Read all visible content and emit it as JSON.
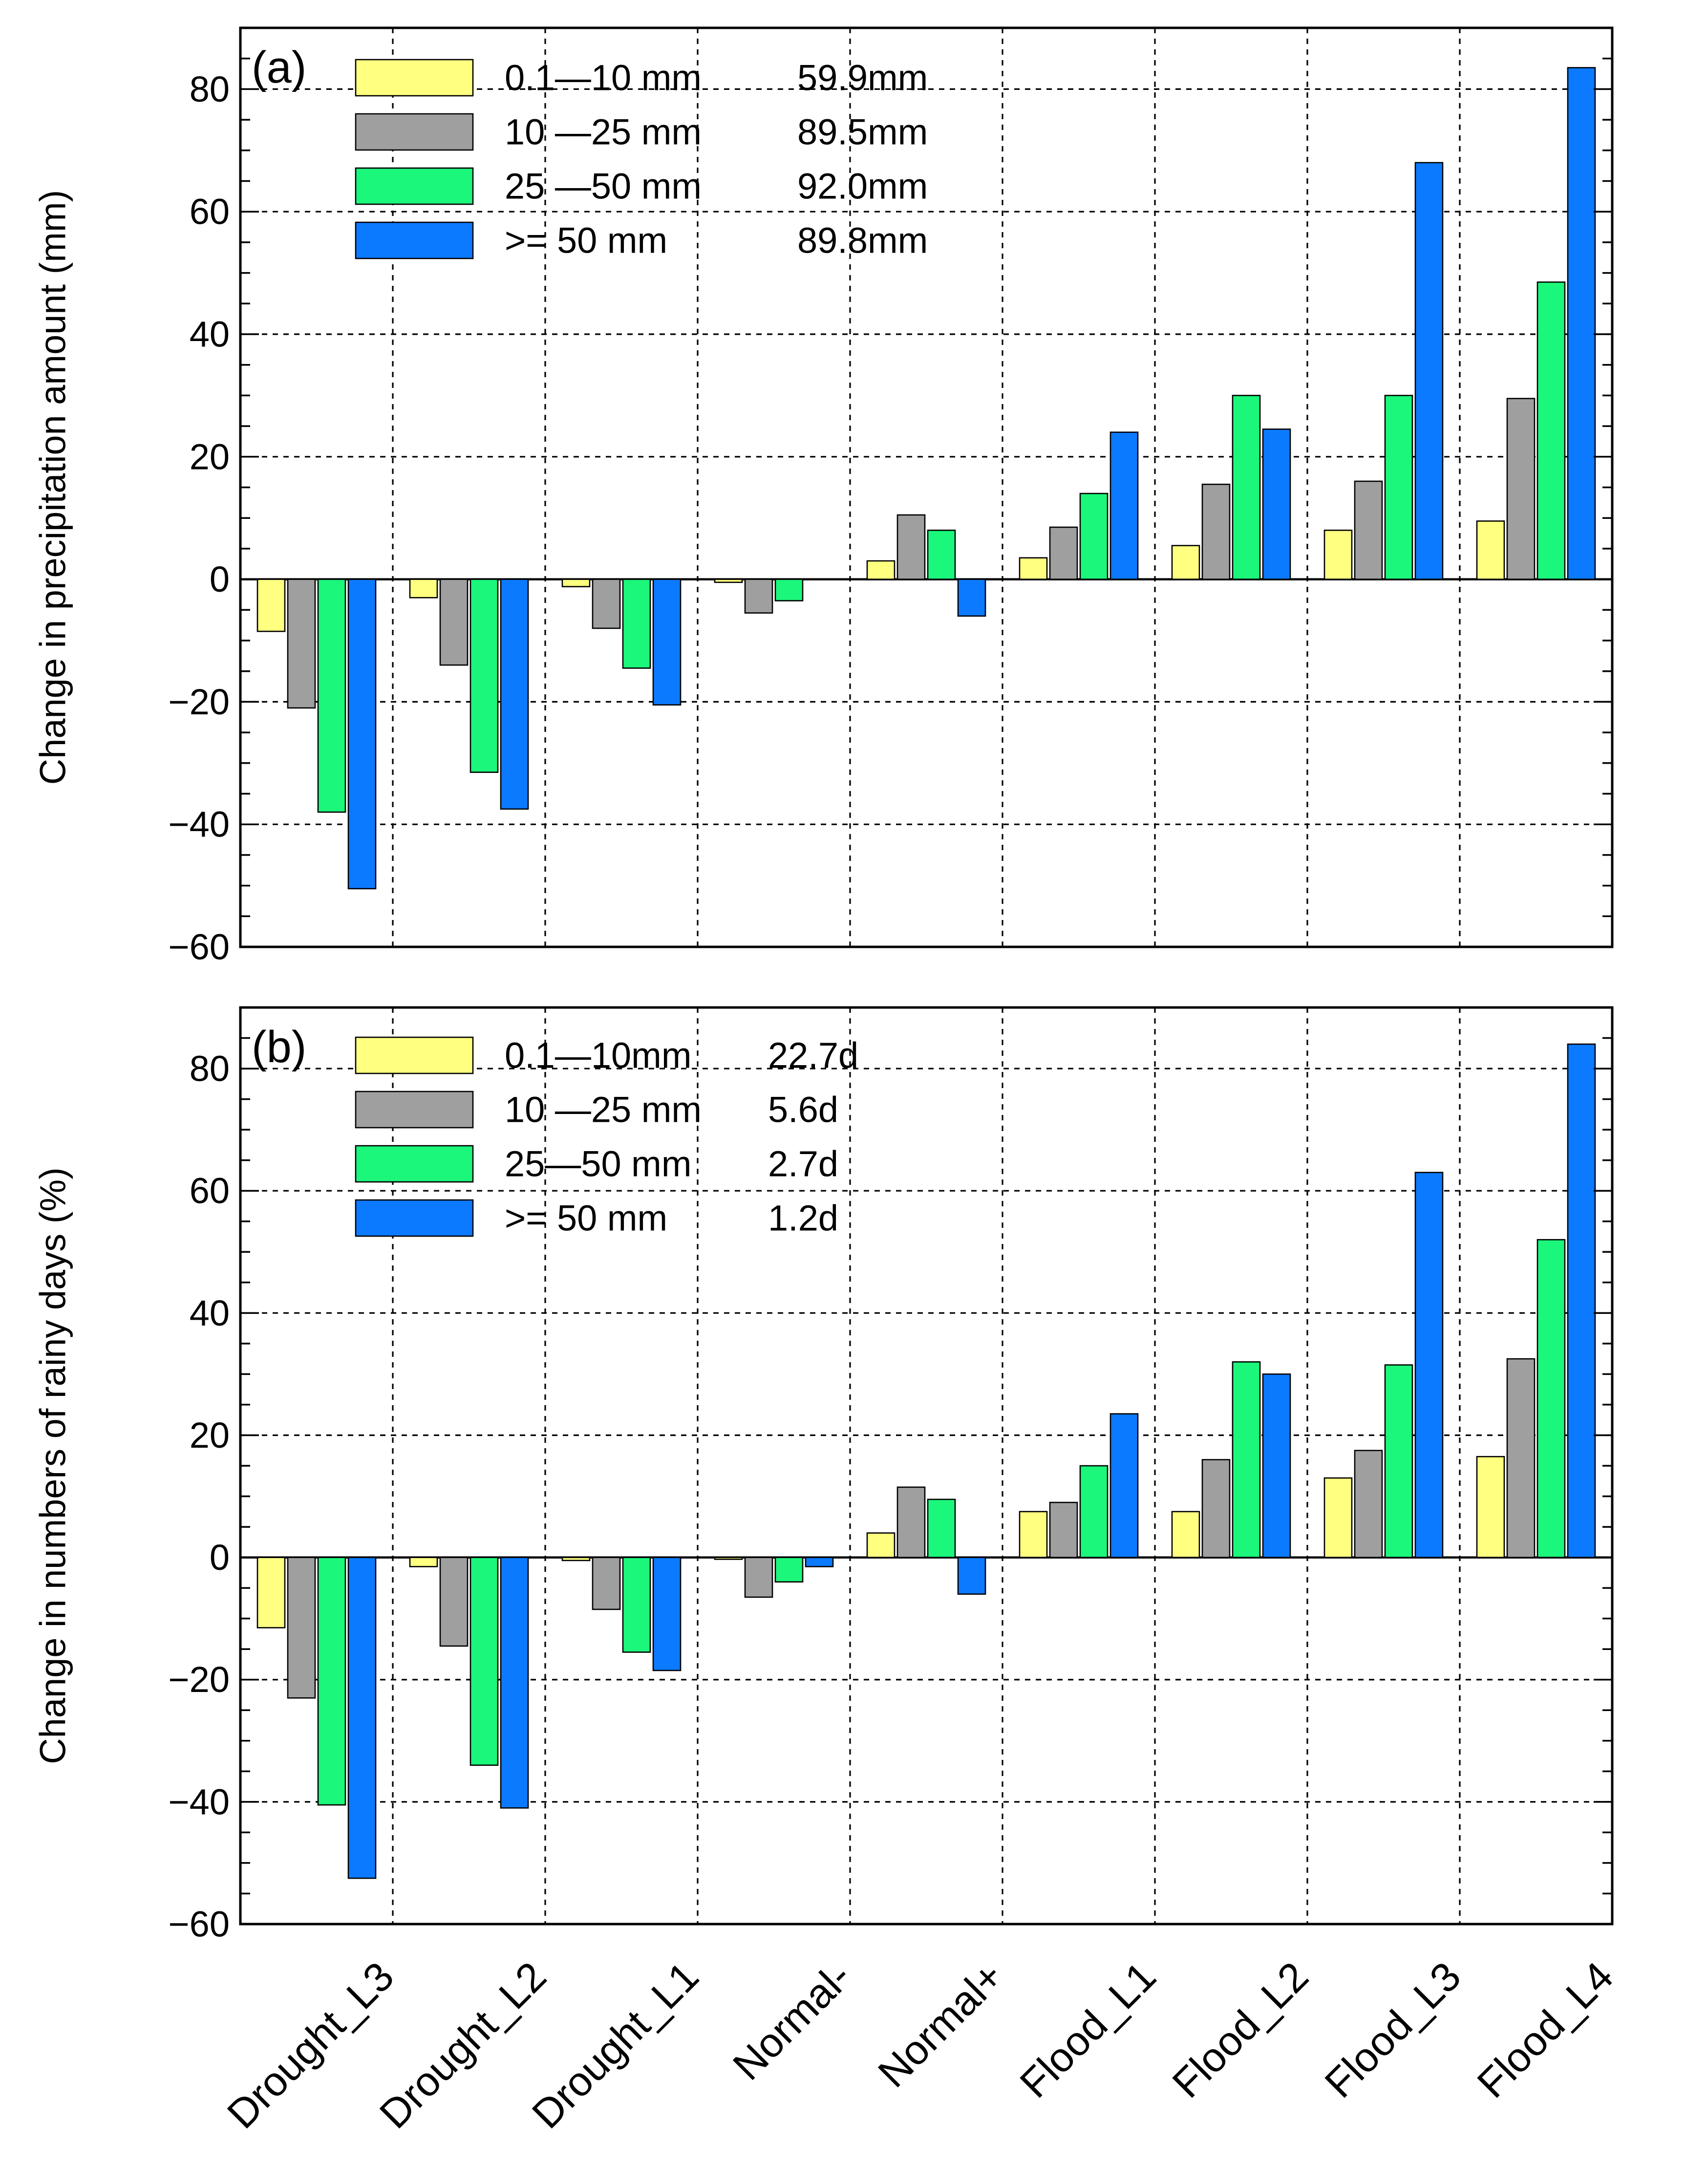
{
  "chart_data": [
    {
      "type": "bar",
      "panel_label": "(a)",
      "title": "",
      "xlabel": "",
      "ylabel": "Change in precipitation amount (mm)",
      "ylim": [
        -60,
        90
      ],
      "yticks": [
        -60,
        -40,
        -20,
        0,
        20,
        40,
        60,
        80
      ],
      "ytick_labels": [
        "−60",
        "−40",
        "−20",
        "0",
        "20",
        "40",
        "60",
        "80"
      ],
      "grid": "dashed",
      "legend_position": "top-left",
      "categories": [
        "Drought_L3",
        "Drought_L2",
        "Drought_L1",
        "Normal-",
        "Normal+",
        "Flood_L1",
        "Flood_L2",
        "Flood_L3",
        "Flood_L4"
      ],
      "series": [
        {
          "name": "0.1—10 mm",
          "legend_value": "59.9mm",
          "color": "#ffff80",
          "values": [
            -8.5,
            -3,
            -1.2,
            -0.5,
            3,
            3.5,
            5.5,
            8,
            9.5
          ]
        },
        {
          "name": "10 —25 mm",
          "legend_value": "89.5mm",
          "color": "#9f9f9f",
          "values": [
            -21,
            -14,
            -8,
            -5.5,
            10.5,
            8.5,
            15.5,
            16,
            29.5
          ]
        },
        {
          "name": "25 —50 mm",
          "legend_value": "92.0mm",
          "color": "#1bf77a",
          "values": [
            -38,
            -31.5,
            -14.5,
            -3.5,
            8,
            14,
            30,
            30,
            48.5
          ]
        },
        {
          "name": " >=  50 mm",
          "legend_value": "89.8mm",
          "color": "#0c7aff",
          "values": [
            -50.5,
            -37.5,
            -20.5,
            0,
            -6,
            24,
            24.5,
            68,
            83.5
          ]
        }
      ]
    },
    {
      "type": "bar",
      "panel_label": "(b)",
      "title": "",
      "xlabel": "",
      "ylabel": "Change in numbers of rainy days (%)",
      "ylim": [
        -60,
        90
      ],
      "yticks": [
        -60,
        -40,
        -20,
        0,
        20,
        40,
        60,
        80
      ],
      "ytick_labels": [
        "−60",
        "−40",
        "−20",
        "0",
        "20",
        "40",
        "60",
        "80"
      ],
      "grid": "dashed",
      "legend_position": "top-left",
      "categories": [
        "Drought_L3",
        "Drought_L2",
        "Drought_L1",
        "Normal-",
        "Normal+",
        "Flood_L1",
        "Flood_L2",
        "Flood_L3",
        "Flood_L4"
      ],
      "series": [
        {
          "name": "0.1—10mm",
          "legend_value": "22.7d",
          "color": "#ffff80",
          "values": [
            -11.5,
            -1.5,
            -0.5,
            -0.3,
            4,
            7.5,
            7.5,
            13,
            16.5
          ]
        },
        {
          "name": "10 —25 mm",
          "legend_value": "5.6d",
          "color": "#9f9f9f",
          "values": [
            -23,
            -14.5,
            -8.5,
            -6.5,
            11.5,
            9,
            16,
            17.5,
            32.5
          ]
        },
        {
          "name": "25—50 mm",
          "legend_value": "2.7d",
          "color": "#1bf77a",
          "values": [
            -40.5,
            -34,
            -15.5,
            -4,
            9.5,
            15,
            32,
            31.5,
            52
          ]
        },
        {
          "name": " >=  50 mm",
          "legend_value": "1.2d",
          "color": "#0c7aff",
          "values": [
            -52.5,
            -41,
            -18.5,
            -1.5,
            -6,
            23.5,
            30,
            63,
            84
          ]
        }
      ]
    }
  ]
}
